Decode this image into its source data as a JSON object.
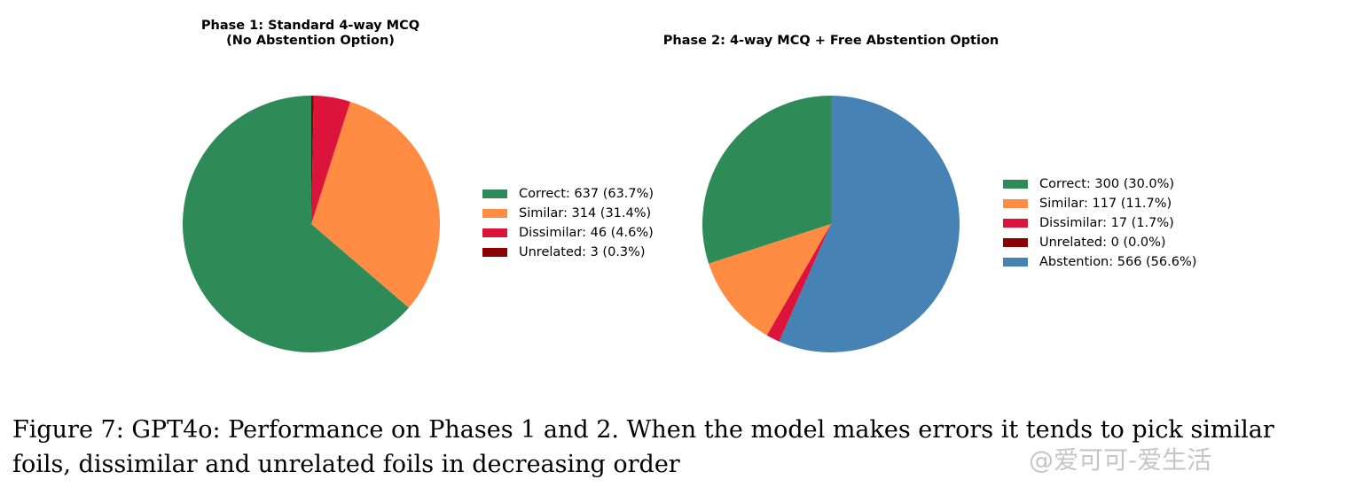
{
  "chart_data": [
    {
      "type": "pie",
      "title": "Phase 1: Standard 4-way MCQ\n(No Abstention Option)",
      "title_lines": [
        "Phase 1: Standard 4-way MCQ",
        "(No Abstention Option)"
      ],
      "legend_placement": "right",
      "start": "top",
      "direction": "counterclockwise",
      "slices": [
        {
          "label": "Correct",
          "value": 637,
          "percent": 63.7,
          "legend": "Correct: 637 (63.7%)",
          "color": "#2e8b57"
        },
        {
          "label": "Similar",
          "value": 314,
          "percent": 31.4,
          "legend": "Similar: 314 (31.4%)",
          "color": "#ff8c42"
        },
        {
          "label": "Dissimilar",
          "value": 46,
          "percent": 4.6,
          "legend": "Dissimilar: 46 (4.6%)",
          "color": "#dc143c"
        },
        {
          "label": "Unrelated",
          "value": 3,
          "percent": 0.3,
          "legend": "Unrelated: 3 (0.3%)",
          "color": "#8b0000"
        }
      ]
    },
    {
      "type": "pie",
      "title": "Phase 2: 4-way MCQ + Free Abstention Option",
      "title_lines": [
        "Phase 2: 4-way MCQ + Free Abstention Option"
      ],
      "legend_placement": "right",
      "start": "top",
      "direction": "counterclockwise",
      "slices": [
        {
          "label": "Correct",
          "value": 300,
          "percent": 30.0,
          "legend": "Correct: 300 (30.0%)",
          "color": "#2e8b57"
        },
        {
          "label": "Similar",
          "value": 117,
          "percent": 11.7,
          "legend": "Similar: 117 (11.7%)",
          "color": "#ff8c42"
        },
        {
          "label": "Dissimilar",
          "value": 17,
          "percent": 1.7,
          "legend": "Dissimilar: 17 (1.7%)",
          "color": "#dc143c"
        },
        {
          "label": "Unrelated",
          "value": 0,
          "percent": 0.0,
          "legend": "Unrelated: 0 (0.0%)",
          "color": "#8b0000"
        },
        {
          "label": "Abstention",
          "value": 566,
          "percent": 56.6,
          "legend": "Abstention: 566 (56.6%)",
          "color": "#4682b4"
        }
      ]
    }
  ],
  "caption": {
    "line1": "Figure 7: GPT4o: Performance on Phases 1 and 2. When the model makes errors it tends to pick similar",
    "line2": "foils, dissimilar and unrelated foils in decreasing order"
  },
  "watermark": "@爱可可-爱生活"
}
